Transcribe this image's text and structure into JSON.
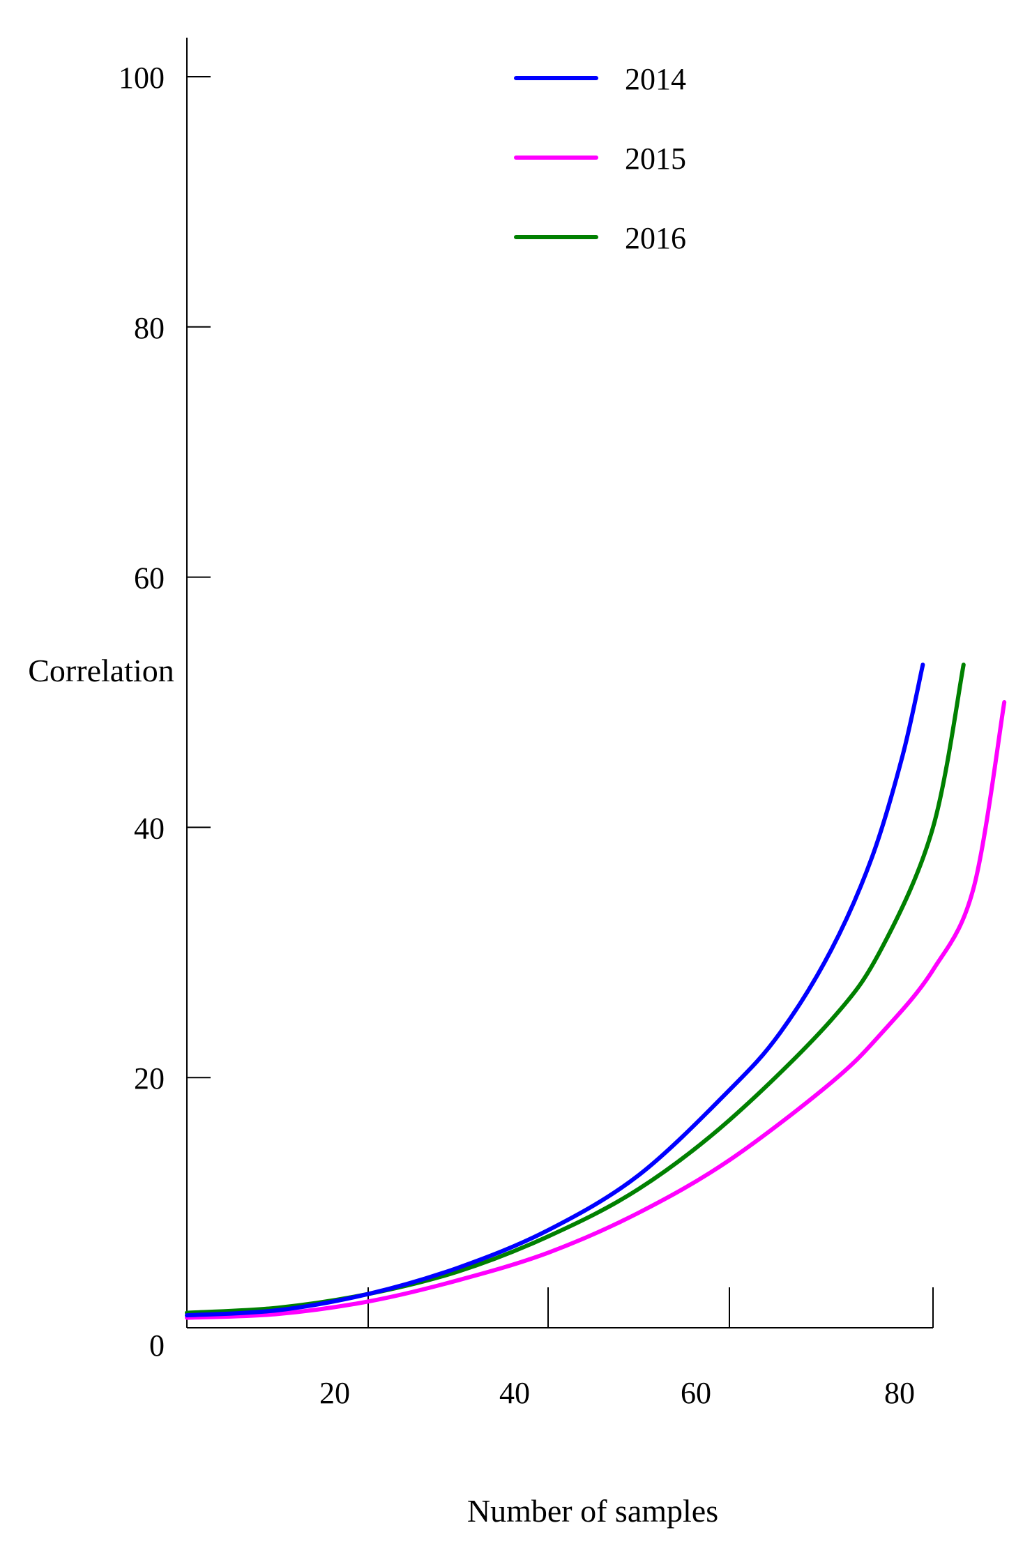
{
  "chart_data": {
    "type": "line",
    "title": "",
    "xlabel": "Number of samples",
    "ylabel": "Correlation",
    "xlim": [
      0,
      82
    ],
    "ylim": [
      0,
      100
    ],
    "x_ticks": [
      20,
      40,
      60,
      80
    ],
    "y_ticks": [
      0,
      20,
      40,
      60,
      80,
      100
    ],
    "grid": false,
    "legend_position": "top-center",
    "series": [
      {
        "name": "2014",
        "color": "#0000ff",
        "x": [
          0,
          10,
          20,
          30,
          40,
          50,
          60,
          65,
          70,
          74,
          77,
          79
        ],
        "y": [
          1.0,
          1.4,
          2.7,
          4.8,
          7.8,
          12.2,
          19.0,
          23.6,
          30.2,
          37.6,
          45.7,
          53.0
        ]
      },
      {
        "name": "2015",
        "color": "#ff00ff",
        "x": [
          0,
          10,
          20,
          30,
          40,
          50,
          60,
          70,
          75,
          80,
          84,
          87
        ],
        "y": [
          0.8,
          1.1,
          2.1,
          3.8,
          6.0,
          9.2,
          13.4,
          19.6,
          23.6,
          28.6,
          35.2,
          50.0
        ]
      },
      {
        "name": "2016",
        "color": "#008000",
        "x": [
          0,
          10,
          20,
          30,
          40,
          50,
          60,
          70,
          75,
          80,
          83
        ],
        "y": [
          1.2,
          1.6,
          2.7,
          4.5,
          7.3,
          11.1,
          16.6,
          24.6,
          30.4,
          40.0,
          53.0
        ]
      }
    ]
  }
}
